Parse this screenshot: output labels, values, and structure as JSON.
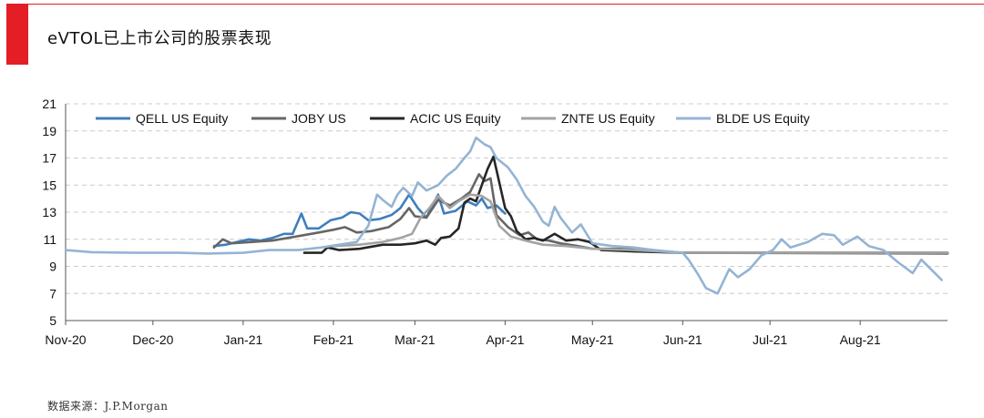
{
  "header": {
    "title": "eVTOL已上市公司的股票表现"
  },
  "footer": {
    "source": "数据来源：J.P.Morgan"
  },
  "chart_data": {
    "type": "line",
    "ylim": [
      5,
      21
    ],
    "yticks": [
      5,
      7,
      9,
      11,
      13,
      15,
      17,
      19,
      21
    ],
    "grid": true,
    "legend_position": "top",
    "x_range": [
      "2020-11-01",
      "2021-08-31"
    ],
    "xticks": [
      {
        "label": "Nov-20",
        "date": "2020-11-01"
      },
      {
        "label": "Dec-20",
        "date": "2020-12-01"
      },
      {
        "label": "Jan-21",
        "date": "2021-01-01"
      },
      {
        "label": "Feb-21",
        "date": "2021-02-01"
      },
      {
        "label": "Mar-21",
        "date": "2021-03-01"
      },
      {
        "label": "Apr-21",
        "date": "2021-04-01"
      },
      {
        "label": "May-21",
        "date": "2021-05-01"
      },
      {
        "label": "Jun-21",
        "date": "2021-06-01"
      },
      {
        "label": "Jul-21",
        "date": "2021-07-01"
      },
      {
        "label": "Aug-21",
        "date": "2021-08-01"
      }
    ],
    "series": [
      {
        "name": "QELL US Equity",
        "color": "#3f7fbd",
        "width": 2.6,
        "points": [
          [
            "2020-12-22",
            10.5
          ],
          [
            "2020-12-26",
            10.6
          ],
          [
            "2020-12-30",
            10.8
          ],
          [
            "2021-01-03",
            11.0
          ],
          [
            "2021-01-07",
            10.9
          ],
          [
            "2021-01-11",
            11.1
          ],
          [
            "2021-01-15",
            11.4
          ],
          [
            "2021-01-18",
            11.4
          ],
          [
            "2021-01-21",
            12.9
          ],
          [
            "2021-01-23",
            11.8
          ],
          [
            "2021-01-27",
            11.8
          ],
          [
            "2021-01-31",
            12.4
          ],
          [
            "2021-02-04",
            12.6
          ],
          [
            "2021-02-07",
            13.0
          ],
          [
            "2021-02-10",
            12.9
          ],
          [
            "2021-02-13",
            12.4
          ],
          [
            "2021-02-17",
            12.5
          ],
          [
            "2021-02-21",
            12.8
          ],
          [
            "2021-02-24",
            13.3
          ],
          [
            "2021-02-27",
            14.3
          ],
          [
            "2021-03-02",
            13.3
          ],
          [
            "2021-03-05",
            12.6
          ],
          [
            "2021-03-07",
            13.5
          ],
          [
            "2021-03-09",
            14.3
          ],
          [
            "2021-03-11",
            12.9
          ],
          [
            "2021-03-15",
            13.1
          ],
          [
            "2021-03-19",
            13.8
          ],
          [
            "2021-03-22",
            13.5
          ],
          [
            "2021-03-24",
            14.0
          ],
          [
            "2021-03-26",
            13.3
          ],
          [
            "2021-03-29",
            13.5
          ],
          [
            "2021-04-01",
            12.9
          ]
        ]
      },
      {
        "name": "JOBY US",
        "color": "#666666",
        "width": 2.6,
        "points": [
          [
            "2020-12-22",
            10.4
          ],
          [
            "2020-12-25",
            11.0
          ],
          [
            "2020-12-28",
            10.7
          ],
          [
            "2021-01-04",
            10.8
          ],
          [
            "2021-01-11",
            10.9
          ],
          [
            "2021-01-19",
            11.2
          ],
          [
            "2021-01-27",
            11.5
          ],
          [
            "2021-02-01",
            11.7
          ],
          [
            "2021-02-05",
            11.9
          ],
          [
            "2021-02-09",
            11.5
          ],
          [
            "2021-02-14",
            11.6
          ],
          [
            "2021-02-20",
            11.9
          ],
          [
            "2021-02-24",
            12.5
          ],
          [
            "2021-02-27",
            13.3
          ],
          [
            "2021-03-01",
            12.7
          ],
          [
            "2021-03-05",
            12.6
          ],
          [
            "2021-03-09",
            13.9
          ],
          [
            "2021-03-13",
            13.5
          ],
          [
            "2021-03-17",
            14.0
          ],
          [
            "2021-03-20",
            14.5
          ],
          [
            "2021-03-23",
            15.8
          ],
          [
            "2021-03-25",
            15.3
          ],
          [
            "2021-03-27",
            15.5
          ],
          [
            "2021-03-29",
            12.8
          ],
          [
            "2021-04-02",
            11.9
          ],
          [
            "2021-04-06",
            11.3
          ],
          [
            "2021-04-09",
            11.5
          ],
          [
            "2021-04-12",
            11.0
          ],
          [
            "2021-04-16",
            10.9
          ],
          [
            "2021-04-20",
            10.7
          ],
          [
            "2021-04-26",
            10.5
          ],
          [
            "2021-05-01",
            10.3
          ],
          [
            "2021-05-10",
            10.3
          ],
          [
            "2021-05-20",
            10.2
          ],
          [
            "2021-06-01",
            10.0
          ],
          [
            "2021-08-31",
            9.95
          ]
        ]
      },
      {
        "name": "ACIC US Equity",
        "color": "#262626",
        "width": 2.6,
        "points": [
          [
            "2021-01-22",
            10.0
          ],
          [
            "2021-01-28",
            10.0
          ],
          [
            "2021-01-30",
            10.4
          ],
          [
            "2021-02-03",
            10.2
          ],
          [
            "2021-02-10",
            10.3
          ],
          [
            "2021-02-18",
            10.6
          ],
          [
            "2021-02-24",
            10.6
          ],
          [
            "2021-03-01",
            10.7
          ],
          [
            "2021-03-05",
            10.9
          ],
          [
            "2021-03-08",
            10.6
          ],
          [
            "2021-03-10",
            11.1
          ],
          [
            "2021-03-13",
            11.2
          ],
          [
            "2021-03-16",
            11.8
          ],
          [
            "2021-03-18",
            13.7
          ],
          [
            "2021-03-20",
            14.0
          ],
          [
            "2021-03-22",
            13.8
          ],
          [
            "2021-03-24",
            15.0
          ],
          [
            "2021-03-26",
            16.2
          ],
          [
            "2021-03-28",
            17.1
          ],
          [
            "2021-03-30",
            15.2
          ],
          [
            "2021-04-01",
            13.3
          ],
          [
            "2021-04-03",
            12.7
          ],
          [
            "2021-04-05",
            11.6
          ],
          [
            "2021-04-08",
            11.0
          ],
          [
            "2021-04-11",
            11.1
          ],
          [
            "2021-04-14",
            10.9
          ],
          [
            "2021-04-18",
            11.4
          ],
          [
            "2021-04-22",
            10.9
          ],
          [
            "2021-04-26",
            11.0
          ],
          [
            "2021-04-30",
            10.8
          ],
          [
            "2021-05-04",
            10.2
          ],
          [
            "2021-05-15",
            10.1
          ],
          [
            "2021-06-01",
            10.0
          ],
          [
            "2021-08-31",
            10.0
          ]
        ]
      },
      {
        "name": "ZNTE US Equity",
        "color": "#a3a3a3",
        "width": 2.6,
        "points": [
          [
            "2021-02-01",
            10.5
          ],
          [
            "2021-02-10",
            10.6
          ],
          [
            "2021-02-18",
            10.8
          ],
          [
            "2021-02-24",
            11.1
          ],
          [
            "2021-02-28",
            11.4
          ],
          [
            "2021-03-03",
            12.6
          ],
          [
            "2021-03-06",
            13.3
          ],
          [
            "2021-03-09",
            14.2
          ],
          [
            "2021-03-13",
            13.3
          ],
          [
            "2021-03-16",
            13.8
          ],
          [
            "2021-03-20",
            14.3
          ],
          [
            "2021-03-24",
            14.2
          ],
          [
            "2021-03-27",
            13.8
          ],
          [
            "2021-03-30",
            12.0
          ],
          [
            "2021-04-03",
            11.2
          ],
          [
            "2021-04-08",
            10.9
          ],
          [
            "2021-04-14",
            10.6
          ],
          [
            "2021-04-22",
            10.5
          ],
          [
            "2021-05-01",
            10.3
          ],
          [
            "2021-05-15",
            10.2
          ],
          [
            "2021-06-01",
            10.0
          ],
          [
            "2021-08-31",
            10.0
          ]
        ]
      },
      {
        "name": "BLDE US Equity",
        "color": "#94b4d4",
        "width": 2.6,
        "points": [
          [
            "2020-11-01",
            10.2
          ],
          [
            "2020-11-10",
            10.05
          ],
          [
            "2020-11-25",
            10.0
          ],
          [
            "2020-12-10",
            10.0
          ],
          [
            "2020-12-20",
            9.95
          ],
          [
            "2021-01-01",
            10.0
          ],
          [
            "2021-01-10",
            10.2
          ],
          [
            "2021-01-20",
            10.2
          ],
          [
            "2021-01-28",
            10.4
          ],
          [
            "2021-02-03",
            10.6
          ],
          [
            "2021-02-09",
            10.8
          ],
          [
            "2021-02-13",
            12.0
          ],
          [
            "2021-02-16",
            14.3
          ],
          [
            "2021-02-18",
            13.9
          ],
          [
            "2021-02-21",
            13.4
          ],
          [
            "2021-02-23",
            14.3
          ],
          [
            "2021-02-25",
            14.8
          ],
          [
            "2021-02-28",
            14.2
          ],
          [
            "2021-03-02",
            15.2
          ],
          [
            "2021-03-05",
            14.6
          ],
          [
            "2021-03-09",
            15.0
          ],
          [
            "2021-03-12",
            15.7
          ],
          [
            "2021-03-15",
            16.2
          ],
          [
            "2021-03-18",
            17.0
          ],
          [
            "2021-03-20",
            17.5
          ],
          [
            "2021-03-22",
            18.5
          ],
          [
            "2021-03-25",
            18.0
          ],
          [
            "2021-03-27",
            17.8
          ],
          [
            "2021-03-29",
            17.0
          ],
          [
            "2021-04-02",
            16.3
          ],
          [
            "2021-04-05",
            15.4
          ],
          [
            "2021-04-08",
            14.2
          ],
          [
            "2021-04-11",
            13.4
          ],
          [
            "2021-04-14",
            12.3
          ],
          [
            "2021-04-16",
            12.0
          ],
          [
            "2021-04-18",
            13.4
          ],
          [
            "2021-04-20",
            12.6
          ],
          [
            "2021-04-24",
            11.5
          ],
          [
            "2021-04-27",
            12.1
          ],
          [
            "2021-05-01",
            10.7
          ],
          [
            "2021-05-08",
            10.5
          ],
          [
            "2021-05-15",
            10.4
          ],
          [
            "2021-05-22",
            10.2
          ],
          [
            "2021-06-01",
            10.0
          ],
          [
            "2021-06-03",
            9.5
          ],
          [
            "2021-06-06",
            8.5
          ],
          [
            "2021-06-09",
            7.4
          ],
          [
            "2021-06-13",
            7.0
          ],
          [
            "2021-06-17",
            8.8
          ],
          [
            "2021-06-20",
            8.2
          ],
          [
            "2021-06-24",
            8.8
          ],
          [
            "2021-06-28",
            9.8
          ],
          [
            "2021-07-02",
            10.2
          ],
          [
            "2021-07-05",
            11.0
          ],
          [
            "2021-07-08",
            10.4
          ],
          [
            "2021-07-14",
            10.8
          ],
          [
            "2021-07-19",
            11.4
          ],
          [
            "2021-07-23",
            11.3
          ],
          [
            "2021-07-26",
            10.6
          ],
          [
            "2021-07-31",
            11.2
          ],
          [
            "2021-08-04",
            10.5
          ],
          [
            "2021-08-09",
            10.2
          ],
          [
            "2021-08-14",
            9.3
          ],
          [
            "2021-08-19",
            8.5
          ],
          [
            "2021-08-22",
            9.5
          ],
          [
            "2021-08-29",
            8.0
          ]
        ]
      }
    ]
  }
}
